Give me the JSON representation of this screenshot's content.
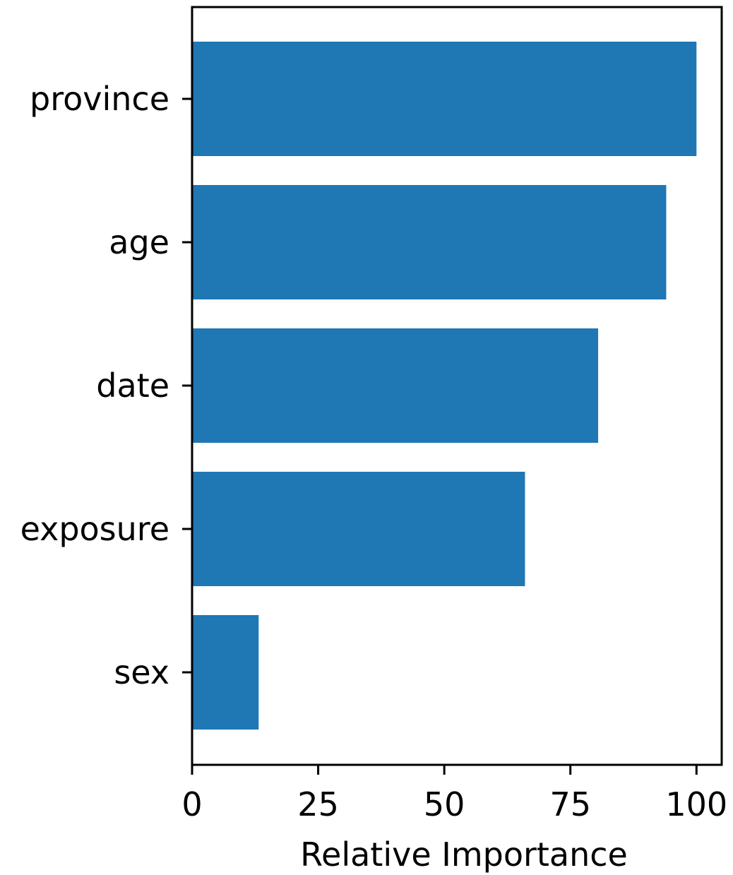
{
  "chart_data": {
    "type": "bar",
    "orientation": "horizontal",
    "categories": [
      "province",
      "age",
      "date",
      "exposure",
      "sex"
    ],
    "values": [
      100,
      94,
      80.5,
      66,
      13.2
    ],
    "xlabel": "Relative Importance",
    "ylabel": "",
    "title": "",
    "xlim": [
      0,
      105
    ],
    "xticks": [
      0,
      25,
      50,
      75,
      100
    ],
    "xtick_labels": [
      "0",
      "25",
      "50",
      "75",
      "100"
    ],
    "grid": false,
    "bar_color": "#1f77b4"
  }
}
